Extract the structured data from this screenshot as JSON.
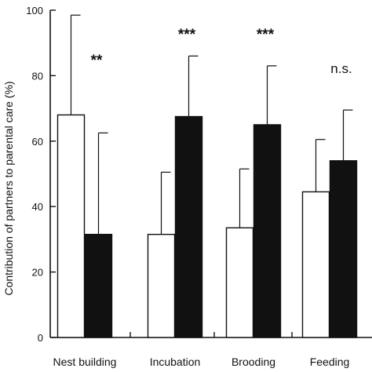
{
  "chart_data": {
    "type": "bar",
    "ylabel": "Contribution of partners to parental care (%)",
    "ylim": [
      0,
      100
    ],
    "yticks": [
      0,
      20,
      40,
      60,
      80,
      100
    ],
    "categories": [
      "Nest building",
      "Incubation",
      "Brooding",
      "Feeding"
    ],
    "series": [
      {
        "values": [
          68,
          31.5,
          33.5,
          44.5
        ],
        "errors": [
          30.5,
          19,
          18,
          16
        ],
        "color": "#ffffff"
      },
      {
        "values": [
          31.5,
          67.5,
          65,
          54
        ],
        "errors": [
          31,
          18.5,
          18,
          15.5
        ],
        "color": "#111111"
      }
    ],
    "significance": [
      "**",
      "***",
      "***",
      "n.s."
    ],
    "grid": false,
    "legend": "none"
  }
}
